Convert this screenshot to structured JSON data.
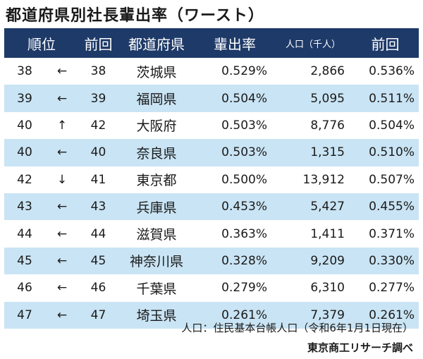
{
  "title": "都道府県別社長輩出率（ワースト）",
  "headers": {
    "rank": "順位",
    "prev": "前回",
    "prefecture": "都道府県",
    "rate": "輩出率",
    "population": "人口（千人）",
    "prev_rate": "前回"
  },
  "rows": [
    {
      "rank": "38",
      "trend": "←",
      "prev": "38",
      "prefecture": "茨城県",
      "rate": "0.529%",
      "population": "2,866",
      "prev_rate": "0.536%"
    },
    {
      "rank": "39",
      "trend": "←",
      "prev": "39",
      "prefecture": "福岡県",
      "rate": "0.504%",
      "population": "5,095",
      "prev_rate": "0.511%"
    },
    {
      "rank": "40",
      "trend": "↑",
      "prev": "42",
      "prefecture": "大阪府",
      "rate": "0.503%",
      "population": "8,776",
      "prev_rate": "0.504%"
    },
    {
      "rank": "40",
      "trend": "←",
      "prev": "40",
      "prefecture": "奈良県",
      "rate": "0.503%",
      "population": "1,315",
      "prev_rate": "0.510%"
    },
    {
      "rank": "42",
      "trend": "↓",
      "prev": "41",
      "prefecture": "東京都",
      "rate": "0.500%",
      "population": "13,912",
      "prev_rate": "0.507%"
    },
    {
      "rank": "43",
      "trend": "←",
      "prev": "43",
      "prefecture": "兵庫県",
      "rate": "0.453%",
      "population": "5,427",
      "prev_rate": "0.455%"
    },
    {
      "rank": "44",
      "trend": "←",
      "prev": "44",
      "prefecture": "滋賀県",
      "rate": "0.363%",
      "population": "1,411",
      "prev_rate": "0.371%"
    },
    {
      "rank": "45",
      "trend": "←",
      "prev": "45",
      "prefecture": "神奈川県",
      "rate": "0.328%",
      "population": "9,209",
      "prev_rate": "0.330%"
    },
    {
      "rank": "46",
      "trend": "←",
      "prev": "46",
      "prefecture": "千葉県",
      "rate": "0.279%",
      "population": "6,310",
      "prev_rate": "0.277%"
    },
    {
      "rank": "47",
      "trend": "←",
      "prev": "47",
      "prefecture": "埼玉県",
      "rate": "0.261%",
      "population": "7,379",
      "prev_rate": "0.261%"
    }
  ],
  "note": "人口：住民基本台帳人口（令和6年1月1日現在）",
  "source": "東京商工リサーチ調べ",
  "colors": {
    "header_bg": "#1e3a68",
    "alt_row_bg": "#c9e4f4"
  }
}
